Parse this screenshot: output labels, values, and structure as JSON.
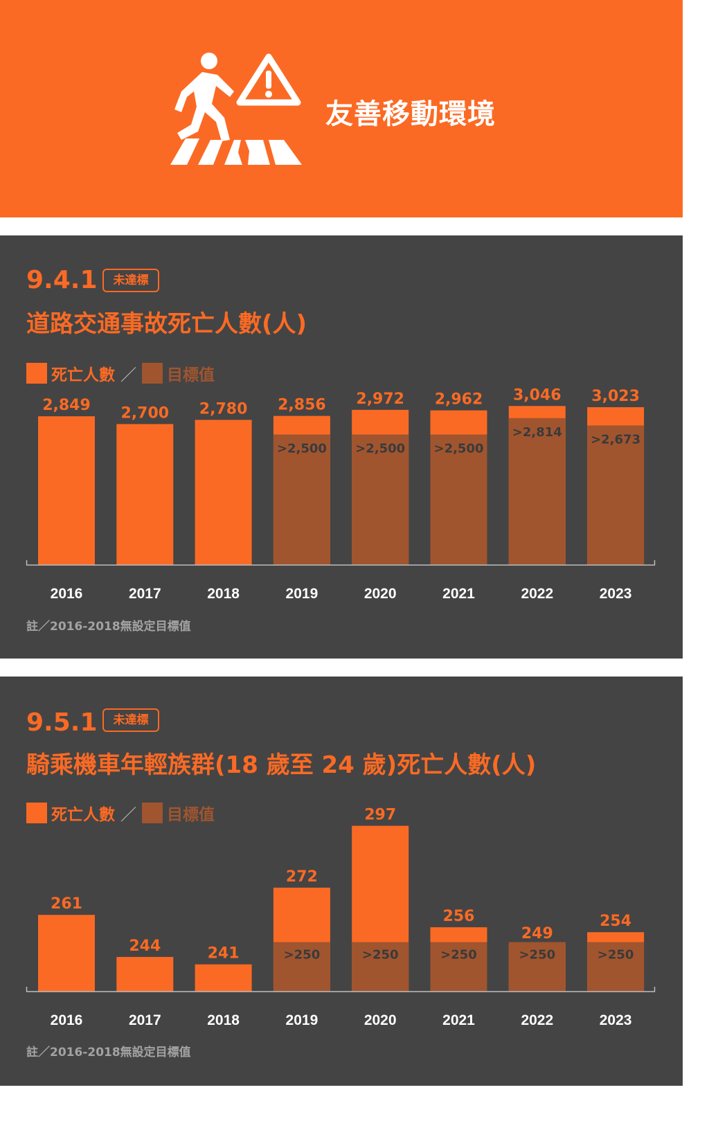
{
  "header": {
    "title": "友善移動環境"
  },
  "colors": {
    "header_bg": "#fb6a24",
    "panel_bg": "#444444",
    "actual": "#fb6a24",
    "target": "#a0552f",
    "axis": "#bdbdbd"
  },
  "icons": [
    "pedestrian-crossing-icon",
    "warning-triangle-icon"
  ],
  "sections": [
    {
      "code": "9.4.1",
      "badge": "未達標",
      "title": "道路交通事故死亡人數(人)",
      "legend": {
        "actual_label": "死亡人數",
        "separator": "／",
        "target_label": "目標值"
      },
      "note": "註／2016-2018無設定目標值"
    },
    {
      "code": "9.5.1",
      "badge": "未達標",
      "title": "騎乘機車年輕族群(18 歲至 24 歲)死亡人數(人)",
      "legend": {
        "actual_label": "死亡人數",
        "separator": "／",
        "target_label": "目標值"
      },
      "note": "註／2016-2018無設定目標值"
    }
  ],
  "chart_data": [
    {
      "type": "bar",
      "categories": [
        "2016",
        "2017",
        "2018",
        "2019",
        "2020",
        "2021",
        "2022",
        "2023"
      ],
      "series": [
        {
          "name": "死亡人數",
          "values": [
            2849,
            2700,
            2780,
            2856,
            2972,
            2962,
            3046,
            3023
          ],
          "labels": [
            "2,849",
            "2,700",
            "2,780",
            "2,856",
            "2,972",
            "2,962",
            "3,046",
            "3,023"
          ]
        },
        {
          "name": "目標值",
          "values": [
            null,
            null,
            null,
            2500,
            2500,
            2500,
            2814,
            2673
          ],
          "labels": [
            "",
            "",
            "",
            ">2,500",
            ">2,500",
            ">2,500",
            ">2,814",
            ">2,673"
          ]
        }
      ],
      "ylim": [
        0,
        3050
      ]
    },
    {
      "type": "bar",
      "categories": [
        "2016",
        "2017",
        "2018",
        "2019",
        "2020",
        "2021",
        "2022",
        "2023"
      ],
      "series": [
        {
          "name": "死亡人數",
          "values": [
            261,
            244,
            241,
            272,
            297,
            256,
            249,
            254
          ],
          "labels": [
            "261",
            "244",
            "241",
            "272",
            "297",
            "256",
            "249",
            "254"
          ]
        },
        {
          "name": "目標值",
          "values": [
            null,
            null,
            null,
            250,
            250,
            250,
            250,
            250
          ],
          "labels": [
            "",
            "",
            "",
            ">250",
            ">250",
            ">250",
            ">250",
            ">250"
          ]
        }
      ],
      "ylim": [
        230,
        298
      ]
    }
  ]
}
